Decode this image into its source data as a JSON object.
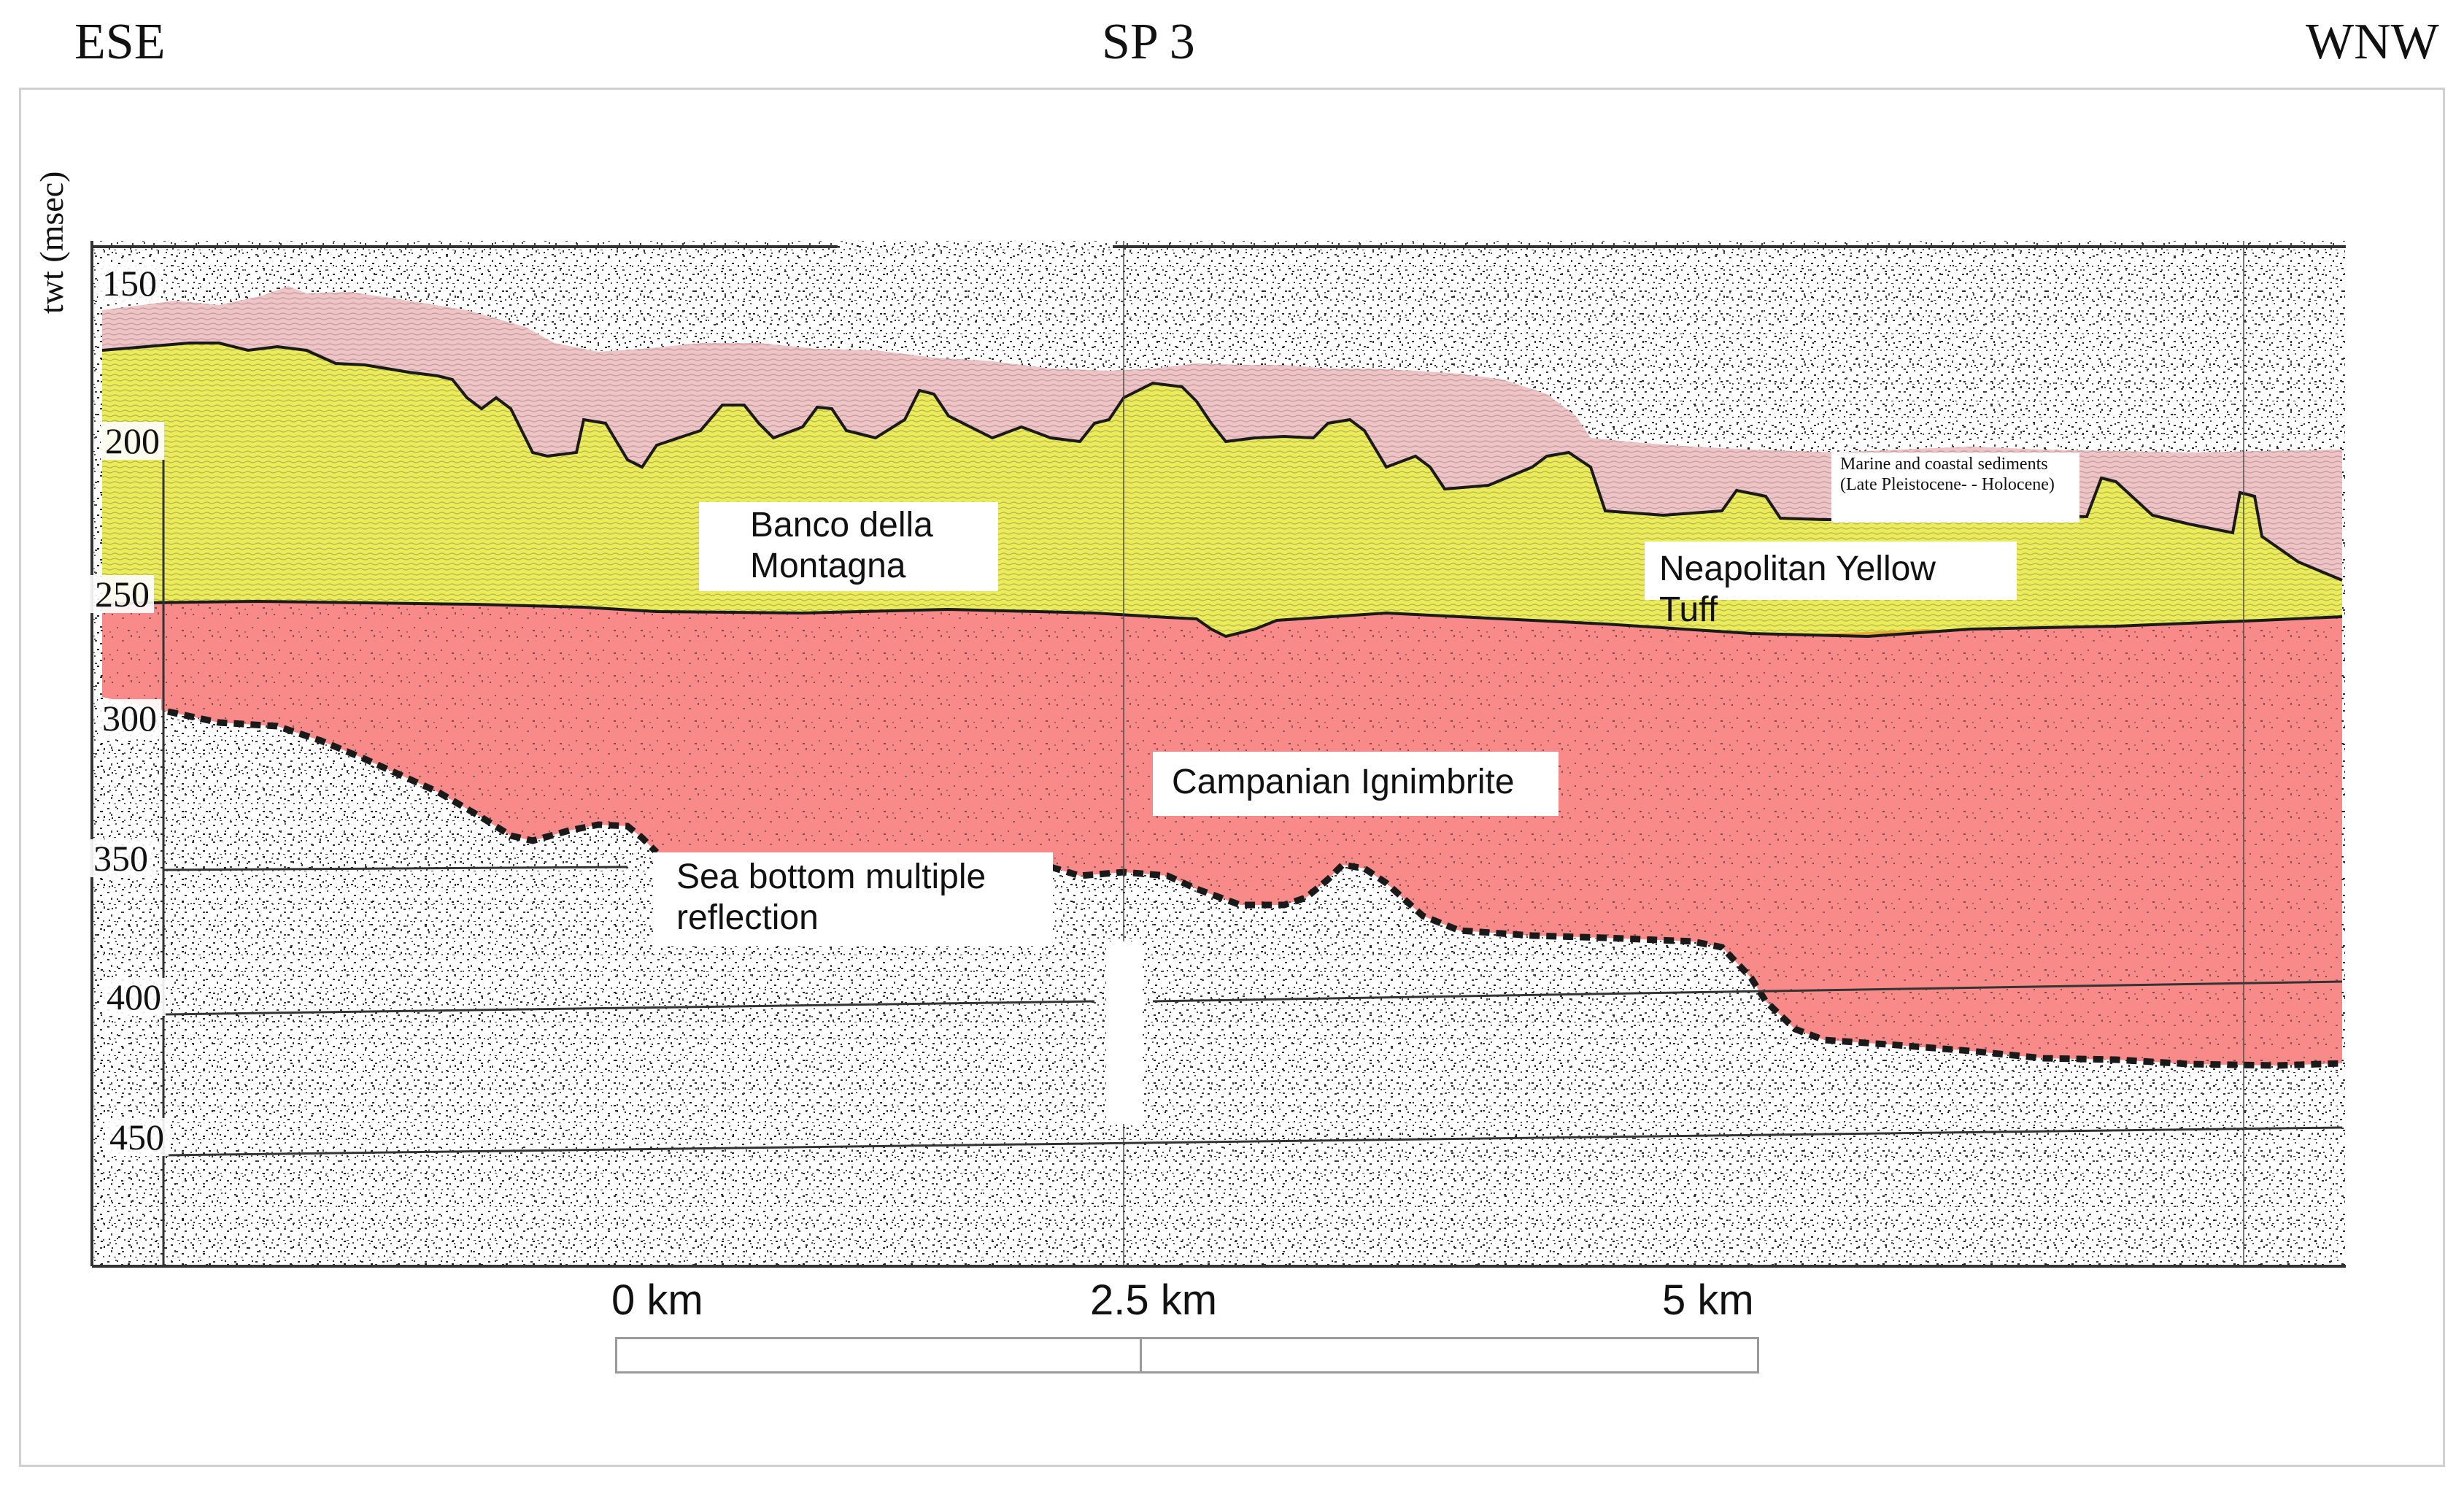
{
  "header": {
    "left_direction": "ESE",
    "center_label": "SP 3",
    "right_direction": "WNW"
  },
  "axis": {
    "title": "twt (msec)",
    "ticks": [
      "150",
      "200",
      "250",
      "300",
      "350",
      "400",
      "450"
    ]
  },
  "units": {
    "banco": "Banco della Montagna",
    "nyt": "Neapolitan Yellow Tuff",
    "ci": "Campanian Ignimbrite",
    "multiple": "Sea bottom multiple reflection",
    "marine": "Marine and coastal sediments (Late Pleistocene- - Holocene)"
  },
  "scale_bar": {
    "labels": [
      "0 km",
      "2.5 km",
      "5 km"
    ]
  },
  "colors": {
    "sediments": "#eec4c6",
    "yellow_tuff": "#ecec5a",
    "ignimbrite": "#f98a8a",
    "basement": "#ffffff",
    "boundary": "#1a1a1a"
  }
}
